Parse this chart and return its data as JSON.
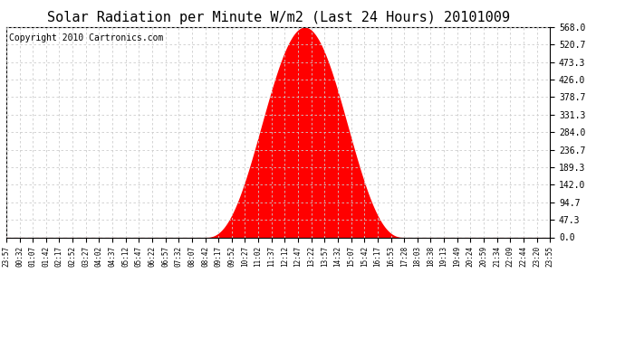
{
  "title": "Solar Radiation per Minute W/m2 (Last 24 Hours) 20101009",
  "copyright": "Copyright 2010 Cartronics.com",
  "yticks": [
    0.0,
    47.3,
    94.7,
    142.0,
    189.3,
    236.7,
    284.0,
    331.3,
    378.7,
    426.0,
    473.3,
    520.7,
    568.0
  ],
  "ymax": 568.0,
  "ymin": 0.0,
  "peak_value": 568.0,
  "fill_color": "#FF0000",
  "line_color": "#FF0000",
  "dashed_line_color": "#FF0000",
  "grid_color": "#CCCCCC",
  "background_color": "#FFFFFF",
  "title_fontsize": 11,
  "copyright_fontsize": 7,
  "xtick_labels": [
    "23:57",
    "00:32",
    "01:07",
    "01:42",
    "02:17",
    "02:52",
    "03:27",
    "04:02",
    "04:37",
    "05:12",
    "05:47",
    "06:22",
    "06:57",
    "07:32",
    "08:07",
    "08:42",
    "09:17",
    "09:52",
    "10:27",
    "11:02",
    "11:37",
    "12:12",
    "12:47",
    "13:22",
    "13:57",
    "14:32",
    "15:07",
    "15:42",
    "16:17",
    "16:53",
    "17:28",
    "18:03",
    "18:38",
    "19:13",
    "19:49",
    "20:24",
    "20:59",
    "21:34",
    "22:09",
    "22:44",
    "23:20",
    "23:55"
  ],
  "num_xticks": 42,
  "sunrise_index": 15,
  "sunset_index": 30,
  "peak_index": 22
}
